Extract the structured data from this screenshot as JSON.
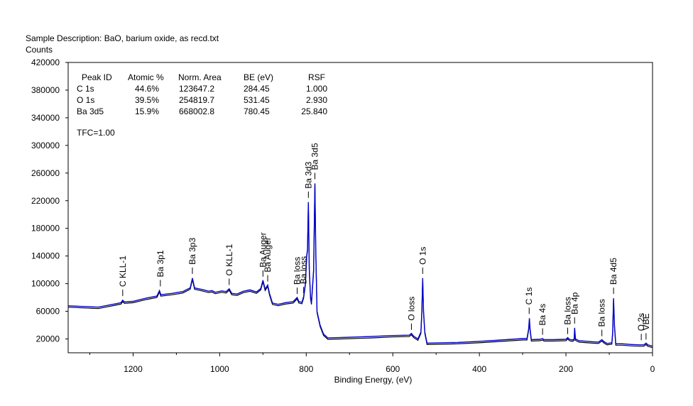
{
  "header": {
    "description": "Sample Description:  BaO, barium oxide, as recd.txt",
    "ylabel": "Counts"
  },
  "quant_table": {
    "columns": [
      "Peak ID",
      "Atomic %",
      "Norm. Area",
      "BE (eV)",
      "RSF"
    ],
    "rows": [
      [
        "C 1s",
        "44.6%",
        "123647.2",
        "284.45",
        "1.000"
      ],
      [
        "O 1s",
        "39.5%",
        "254819.7",
        "531.45",
        "2.930"
      ],
      [
        "Ba 3d5",
        "15.9%",
        "668002.8",
        "780.45",
        "25.840"
      ]
    ],
    "tfc": "TFC=1.00"
  },
  "chart_data": {
    "type": "line",
    "xlabel": "Binding Energy, (eV)",
    "ylabel": "Counts",
    "xlim": [
      1350,
      0
    ],
    "ylim": [
      0,
      420000
    ],
    "x_ticks": [
      1200,
      1000,
      800,
      600,
      400,
      200,
      0
    ],
    "x_tick_labels": [
      "1200",
      "1000",
      "800",
      "600",
      "400",
      "200",
      "0"
    ],
    "y_ticks": [
      20000,
      60000,
      100000,
      140000,
      180000,
      220000,
      260000,
      300000,
      340000,
      380000,
      420000
    ],
    "y_tick_labels": [
      "20000",
      "60000",
      "100000",
      "140000",
      "180000",
      "220000",
      "260000",
      "300000",
      "340000",
      "380000",
      "420000"
    ],
    "series": [
      {
        "name": "",
        "color": "#0000cc",
        "points": [
          [
            1350,
            68000
          ],
          [
            1300,
            66500
          ],
          [
            1280,
            66000
          ],
          [
            1260,
            68500
          ],
          [
            1240,
            71000
          ],
          [
            1228,
            72500
          ],
          [
            1224,
            76000
          ],
          [
            1220,
            73500
          ],
          [
            1200,
            74500
          ],
          [
            1170,
            79000
          ],
          [
            1145,
            82000
          ],
          [
            1139,
            90000
          ],
          [
            1136,
            84000
          ],
          [
            1110,
            86000
          ],
          [
            1085,
            88500
          ],
          [
            1068,
            94000
          ],
          [
            1063,
            108000
          ],
          [
            1058,
            94000
          ],
          [
            1040,
            91500
          ],
          [
            1025,
            89000
          ],
          [
            1018,
            90000
          ],
          [
            1010,
            87500
          ],
          [
            995,
            89500
          ],
          [
            985,
            88500
          ],
          [
            978,
            92500
          ],
          [
            972,
            86000
          ],
          [
            960,
            85000
          ],
          [
            945,
            89000
          ],
          [
            930,
            91000
          ],
          [
            915,
            88000
          ],
          [
            905,
            93000
          ],
          [
            900,
            105000
          ],
          [
            895,
            92000
          ],
          [
            889,
            98000
          ],
          [
            885,
            86000
          ],
          [
            878,
            72000
          ],
          [
            865,
            70000
          ],
          [
            848,
            72500
          ],
          [
            830,
            74000
          ],
          [
            821,
            80000
          ],
          [
            817,
            74000
          ],
          [
            810,
            73000
          ],
          [
            806,
            81000
          ],
          [
            802,
            100000
          ],
          [
            799,
            140000
          ],
          [
            797,
            150000
          ],
          [
            795,
            218000
          ],
          [
            793,
            120000
          ],
          [
            790,
            80000
          ],
          [
            788,
            72000
          ],
          [
            783,
            120000
          ],
          [
            780,
            245000
          ],
          [
            778,
            150000
          ],
          [
            775,
            60000
          ],
          [
            768,
            40000
          ],
          [
            760,
            27000
          ],
          [
            750,
            21500
          ],
          [
            700,
            22500
          ],
          [
            650,
            23500
          ],
          [
            600,
            25000
          ],
          [
            562,
            25500
          ],
          [
            557,
            28000
          ],
          [
            552,
            24000
          ],
          [
            542,
            20000
          ],
          [
            535,
            30000
          ],
          [
            533,
            60000
          ],
          [
            531,
            108000
          ],
          [
            529,
            60000
          ],
          [
            526,
            30000
          ],
          [
            521,
            14000
          ],
          [
            450,
            15000
          ],
          [
            400,
            16500
          ],
          [
            350,
            18500
          ],
          [
            300,
            20500
          ],
          [
            290,
            20500
          ],
          [
            286,
            35000
          ],
          [
            284.5,
            50000
          ],
          [
            283,
            35000
          ],
          [
            280,
            19000
          ],
          [
            260,
            19500
          ],
          [
            254,
            20500
          ],
          [
            251,
            19000
          ],
          [
            230,
            19000
          ],
          [
            200,
            19500
          ],
          [
            196,
            22000
          ],
          [
            192,
            19500
          ],
          [
            185,
            18500
          ],
          [
            181,
            20000
          ],
          [
            180,
            36000
          ],
          [
            178,
            20000
          ],
          [
            170,
            17500
          ],
          [
            140,
            16000
          ],
          [
            125,
            15500
          ],
          [
            117,
            19000
          ],
          [
            112,
            16000
          ],
          [
            105,
            13500
          ],
          [
            94,
            14500
          ],
          [
            92,
            30000
          ],
          [
            90,
            79000
          ],
          [
            88,
            40000
          ],
          [
            85,
            13000
          ],
          [
            70,
            13000
          ],
          [
            50,
            12000
          ],
          [
            30,
            11500
          ],
          [
            20,
            11500
          ],
          [
            15,
            14000
          ],
          [
            11,
            11500
          ],
          [
            0,
            9500
          ]
        ]
      }
    ],
    "peaks": [
      {
        "label": "C KLL-1",
        "be": 1224,
        "y": 79000
      },
      {
        "label": "Ba 3p1",
        "be": 1137,
        "y": 93000
      },
      {
        "label": "Ba 3p3",
        "be": 1063,
        "y": 111000
      },
      {
        "label": "O KLL-1",
        "be": 978,
        "y": 95000
      },
      {
        "label": "Ba Auger",
        "be": 900,
        "y": 107000
      },
      {
        "label": "Ba Auger",
        "be": 889,
        "y": 100000
      },
      {
        "label": "Ba loss",
        "be": 821,
        "y": 82000
      },
      {
        "label": "Ba loss",
        "be": 806,
        "y": 83000
      },
      {
        "label": "Ba 3d3",
        "be": 795,
        "y": 221000
      },
      {
        "label": "Ba 3d5",
        "be": 780,
        "y": 248000
      },
      {
        "label": "O loss",
        "be": 557,
        "y": 30000
      },
      {
        "label": "O 1s",
        "be": 531,
        "y": 111000
      },
      {
        "label": "C 1s",
        "be": 285,
        "y": 53000
      },
      {
        "label": "Ba 4s",
        "be": 254,
        "y": 23000
      },
      {
        "label": "Ba loss",
        "be": 196,
        "y": 24000
      },
      {
        "label": "Ba 4p",
        "be": 180,
        "y": 39000
      },
      {
        "label": "Ba loss",
        "be": 117,
        "y": 21000
      },
      {
        "label": "Ba 4d5",
        "be": 90,
        "y": 82000
      },
      {
        "label": "O 2s",
        "be": 26,
        "y": 15000
      },
      {
        "label": "VBE",
        "be": 15,
        "y": 16000
      }
    ]
  }
}
